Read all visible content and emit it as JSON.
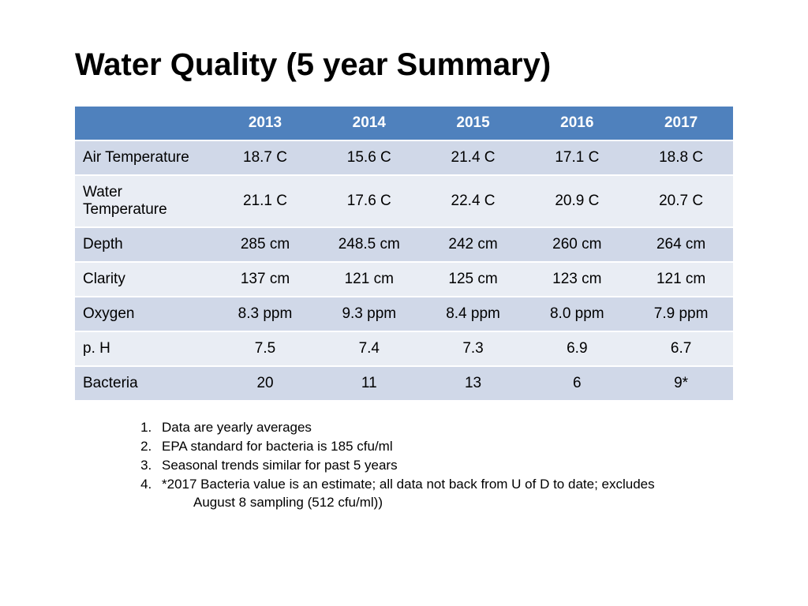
{
  "title": "Water Quality (5 year Summary)",
  "table": {
    "type": "table",
    "header_bg_color": "#4f81bd",
    "header_text_color": "#ffffff",
    "row_odd_bg": "#d0d8e8",
    "row_even_bg": "#e9edf4",
    "text_color": "#000000",
    "font_size_pt": 14,
    "columns": [
      "",
      "2013",
      "2014",
      "2015",
      "2016",
      "2017"
    ],
    "rows": [
      {
        "label": "Air Temperature",
        "cells": [
          "18.7 C",
          "15.6 C",
          "21.4 C",
          "17.1 C",
          "18.8 C"
        ]
      },
      {
        "label": "Water Temperature",
        "cells": [
          "21.1 C",
          "17.6 C",
          "22.4 C",
          "20.9 C",
          "20.7 C"
        ]
      },
      {
        "label": "Depth",
        "cells": [
          "285 cm",
          "248.5 cm",
          "242 cm",
          "260 cm",
          "264 cm"
        ]
      },
      {
        "label": "Clarity",
        "cells": [
          "137 cm",
          "121 cm",
          "125 cm",
          "123 cm",
          "121 cm"
        ]
      },
      {
        "label": "Oxygen",
        "cells": [
          "8.3 ppm",
          "9.3 ppm",
          "8.4 ppm",
          "8.0 ppm",
          "7.9 ppm"
        ]
      },
      {
        "label": "p. H",
        "cells": [
          "7.5",
          "7.4",
          "7.3",
          "6.9",
          "6.7"
        ]
      },
      {
        "label": "Bacteria",
        "cells": [
          "20",
          "11",
          "13",
          "6",
          "9*"
        ]
      }
    ]
  },
  "footnotes": {
    "items": [
      "Data are yearly averages",
      "EPA standard for bacteria is 185 cfu/ml",
      "Seasonal trends similar for past 5 years",
      "*2017 Bacteria value is an estimate; all data not back from U of D to date; excludes"
    ],
    "continuation": "August 8 sampling (512 cfu/ml))"
  }
}
